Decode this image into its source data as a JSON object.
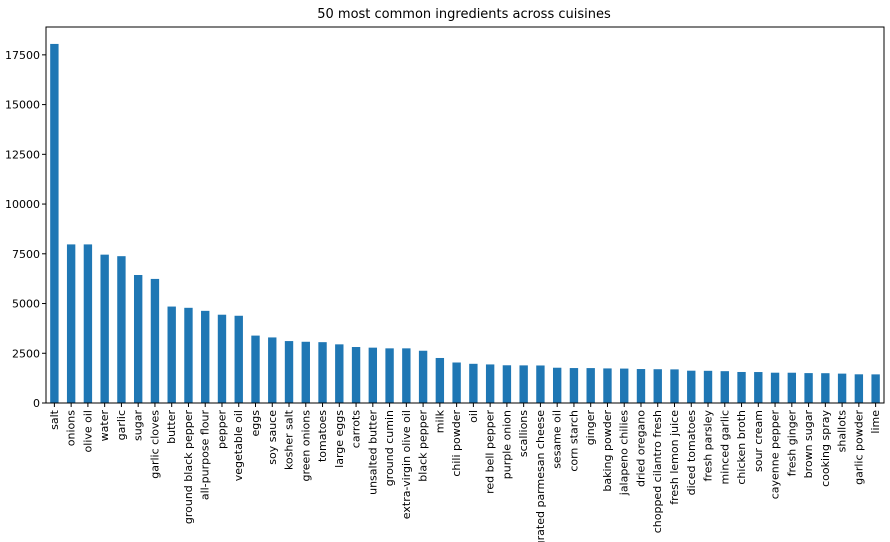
{
  "chart_data": {
    "type": "bar",
    "title": "50 most common ingredients across cuisines",
    "xlabel": "",
    "ylabel": "",
    "bar_color": "#1f77b4",
    "ylim": [
      0,
      18900
    ],
    "yticks": [
      0,
      2500,
      5000,
      7500,
      10000,
      12500,
      15000,
      17500
    ],
    "grid": false,
    "categories": [
      "salt",
      "onions",
      "olive oil",
      "water",
      "garlic",
      "sugar",
      "garlic cloves",
      "butter",
      "ground black pepper",
      "all-purpose flour",
      "pepper",
      "vegetable oil",
      "eggs",
      "soy sauce",
      "kosher salt",
      "green onions",
      "tomatoes",
      "large eggs",
      "carrots",
      "unsalted butter",
      "ground cumin",
      "extra-virgin olive oil",
      "black pepper",
      "milk",
      "chili powder",
      "oil",
      "red bell pepper",
      "purple onion",
      "scallions",
      "grated parmesan cheese",
      "sesame oil",
      "corn starch",
      "ginger",
      "baking powder",
      "jalapeno chilies",
      "dried oregano",
      "chopped cilantro fresh",
      "fresh lemon juice",
      "diced tomatoes",
      "fresh parsley",
      "minced garlic",
      "chicken broth",
      "sour cream",
      "cayenne pepper",
      "fresh ginger",
      "brown sugar",
      "cooking spray",
      "shallots",
      "garlic powder",
      "lime"
    ],
    "values": [
      18049,
      7972,
      7972,
      7457,
      7380,
      6434,
      6237,
      4848,
      4785,
      4632,
      4438,
      4385,
      3388,
      3296,
      3113,
      3078,
      3058,
      2948,
      2814,
      2782,
      2747,
      2747,
      2627,
      2263,
      2036,
      1970,
      1939,
      1896,
      1891,
      1886,
      1773,
      1757,
      1755,
      1738,
      1730,
      1707,
      1698,
      1690,
      1624,
      1618,
      1600,
      1559,
      1556,
      1523,
      1522,
      1503,
      1498,
      1477,
      1442,
      1439
    ]
  }
}
